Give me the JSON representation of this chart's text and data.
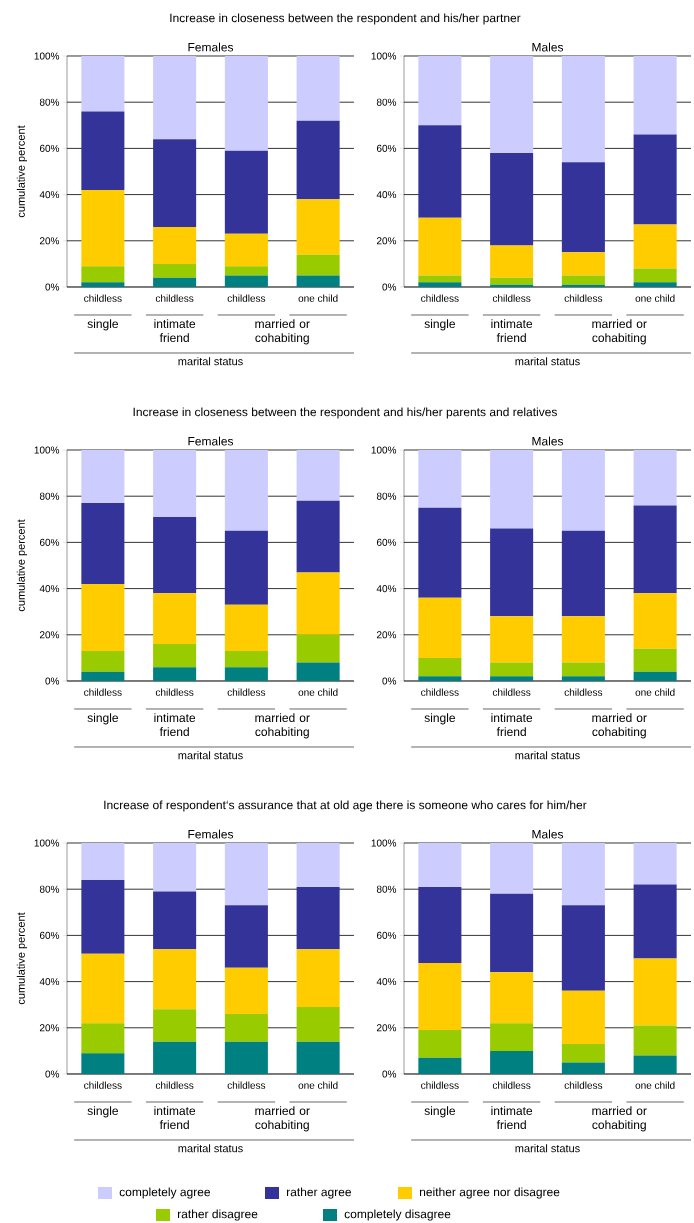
{
  "chart_data": [
    {
      "type": "bar",
      "stacked": true,
      "title": "Females",
      "ylabel": "cumulative percent",
      "xlabel": "marital status",
      "grid": "y",
      "categories": [
        "childless",
        "childless",
        "childless",
        "one child"
      ],
      "ylim": [
        0,
        100
      ],
      "yticks": [
        {
          "value": 0,
          "label": "0%"
        },
        {
          "value": 20,
          "label": "20%"
        },
        {
          "value": 40,
          "label": "40%"
        },
        {
          "value": 60,
          "label": "60%"
        },
        {
          "value": 80,
          "label": "80%"
        },
        {
          "value": 100,
          "label": "100%"
        }
      ],
      "annotations": [
        "single",
        "intimate friend",
        "married or cohabiting",
        "Increase in closeness between the respondent and his/her partner"
      ],
      "series": [
        {
          "color": "#008080",
          "values": [
            2,
            4,
            5,
            5
          ]
        },
        {
          "color": "#99cc00",
          "values": [
            7,
            6,
            4,
            9
          ]
        },
        {
          "color": "#ffcc00",
          "values": [
            33,
            16,
            14,
            24
          ]
        },
        {
          "color": "#333399",
          "values": [
            34,
            38,
            36,
            34
          ]
        },
        {
          "color": "#ccccff",
          "values": [
            24,
            36,
            41,
            28
          ]
        }
      ]
    },
    {
      "type": "bar",
      "stacked": true,
      "title": "Males",
      "xlabel": "marital status",
      "grid": "y",
      "categories": [
        "childless",
        "childless",
        "childless",
        "one child"
      ],
      "ylim": [
        0,
        100
      ],
      "yticks": [
        {
          "value": 0,
          "label": "0%"
        },
        {
          "value": 20,
          "label": "20%"
        },
        {
          "value": 40,
          "label": "40%"
        },
        {
          "value": 60,
          "label": "60%"
        },
        {
          "value": 80,
          "label": "80%"
        },
        {
          "value": 100,
          "label": "100%"
        }
      ],
      "annotations": [
        "single",
        "intimate friend",
        "married or cohabiting"
      ],
      "series": [
        {
          "color": "#008080",
          "values": [
            2,
            1,
            1,
            2
          ]
        },
        {
          "color": "#99cc00",
          "values": [
            3,
            3,
            4,
            6
          ]
        },
        {
          "color": "#ffcc00",
          "values": [
            25,
            14,
            10,
            19
          ]
        },
        {
          "color": "#333399",
          "values": [
            40,
            40,
            39,
            39
          ]
        },
        {
          "color": "#ccccff",
          "values": [
            30,
            42,
            46,
            34
          ]
        }
      ]
    },
    {
      "type": "bar",
      "stacked": true,
      "title": "Females",
      "ylabel": "cumulative percent",
      "xlabel": "marital status",
      "grid": "y",
      "categories": [
        "childless",
        "childless",
        "childless",
        "one child"
      ],
      "ylim": [
        0,
        100
      ],
      "yticks": [
        {
          "value": 0,
          "label": "0%"
        },
        {
          "value": 20,
          "label": "20%"
        },
        {
          "value": 40,
          "label": "40%"
        },
        {
          "value": 60,
          "label": "60%"
        },
        {
          "value": 80,
          "label": "80%"
        },
        {
          "value": 100,
          "label": "100%"
        }
      ],
      "annotations": [
        "single",
        "intimate friend",
        "married or cohabiting",
        "Increase in closeness between the respondent and his/her parents and relatives"
      ],
      "series": [
        {
          "color": "#008080",
          "values": [
            4,
            6,
            6,
            8
          ]
        },
        {
          "color": "#99cc00",
          "values": [
            9,
            10,
            7,
            12
          ]
        },
        {
          "color": "#ffcc00",
          "values": [
            29,
            22,
            20,
            27
          ]
        },
        {
          "color": "#333399",
          "values": [
            35,
            33,
            32,
            31
          ]
        },
        {
          "color": "#ccccff",
          "values": [
            23,
            29,
            35,
            22
          ]
        }
      ]
    },
    {
      "type": "bar",
      "stacked": true,
      "title": "Males",
      "xlabel": "marital status",
      "grid": "y",
      "categories": [
        "childless",
        "childless",
        "childless",
        "one child"
      ],
      "ylim": [
        0,
        100
      ],
      "yticks": [
        {
          "value": 0,
          "label": "0%"
        },
        {
          "value": 20,
          "label": "20%"
        },
        {
          "value": 40,
          "label": "40%"
        },
        {
          "value": 60,
          "label": "60%"
        },
        {
          "value": 80,
          "label": "80%"
        },
        {
          "value": 100,
          "label": "100%"
        }
      ],
      "annotations": [
        "single",
        "intimate friend",
        "married or cohabiting"
      ],
      "series": [
        {
          "color": "#008080",
          "values": [
            2,
            2,
            2,
            4
          ]
        },
        {
          "color": "#99cc00",
          "values": [
            8,
            6,
            6,
            10
          ]
        },
        {
          "color": "#ffcc00",
          "values": [
            26,
            20,
            20,
            24
          ]
        },
        {
          "color": "#333399",
          "values": [
            39,
            38,
            37,
            38
          ]
        },
        {
          "color": "#ccccff",
          "values": [
            25,
            34,
            35,
            24
          ]
        }
      ]
    },
    {
      "type": "bar",
      "stacked": true,
      "title": "Females",
      "ylabel": "cumulative percent",
      "xlabel": "marital status",
      "grid": "y",
      "categories": [
        "childless",
        "childless",
        "childless",
        "one child"
      ],
      "ylim": [
        0,
        100
      ],
      "yticks": [
        {
          "value": 0,
          "label": "0%"
        },
        {
          "value": 20,
          "label": "20%"
        },
        {
          "value": 40,
          "label": "40%"
        },
        {
          "value": 60,
          "label": "60%"
        },
        {
          "value": 80,
          "label": "80%"
        },
        {
          "value": 100,
          "label": "100%"
        }
      ],
      "annotations": [
        "single",
        "intimate friend",
        "married or cohabiting",
        "Increase of respondent‘s assurance that at old age there is someone who cares for him/her"
      ],
      "series": [
        {
          "color": "#008080",
          "values": [
            9,
            14,
            14,
            14
          ]
        },
        {
          "color": "#99cc00",
          "values": [
            13,
            14,
            12,
            15
          ]
        },
        {
          "color": "#ffcc00",
          "values": [
            30,
            26,
            20,
            25
          ]
        },
        {
          "color": "#333399",
          "values": [
            32,
            25,
            27,
            27
          ]
        },
        {
          "color": "#ccccff",
          "values": [
            16,
            21,
            27,
            19
          ]
        }
      ]
    },
    {
      "type": "bar",
      "stacked": true,
      "title": "Males",
      "xlabel": "marital status",
      "grid": "y",
      "legend": "bottom",
      "categories": [
        "childless",
        "childless",
        "childless",
        "one child"
      ],
      "ylim": [
        0,
        100
      ],
      "yticks": [
        {
          "value": 0,
          "label": "0%"
        },
        {
          "value": 20,
          "label": "20%"
        },
        {
          "value": 40,
          "label": "40%"
        },
        {
          "value": 60,
          "label": "60%"
        },
        {
          "value": 80,
          "label": "80%"
        },
        {
          "value": 100,
          "label": "100%"
        }
      ],
      "annotations": [
        "single",
        "intimate friend",
        "married or cohabiting"
      ],
      "series": [
        {
          "name": "completely disagree",
          "color": "#008080",
          "values": [
            7,
            10,
            5,
            8
          ]
        },
        {
          "name": "rather disagree",
          "color": "#99cc00",
          "values": [
            12,
            12,
            8,
            13
          ]
        },
        {
          "name": "neither agree nor disagree",
          "color": "#ffcc00",
          "values": [
            29,
            22,
            23,
            29
          ]
        },
        {
          "name": "rather agree",
          "color": "#333399",
          "values": [
            33,
            34,
            37,
            32
          ]
        },
        {
          "name": "completely agree",
          "color": "#ccccff",
          "values": [
            19,
            22,
            27,
            18
          ]
        }
      ]
    }
  ]
}
